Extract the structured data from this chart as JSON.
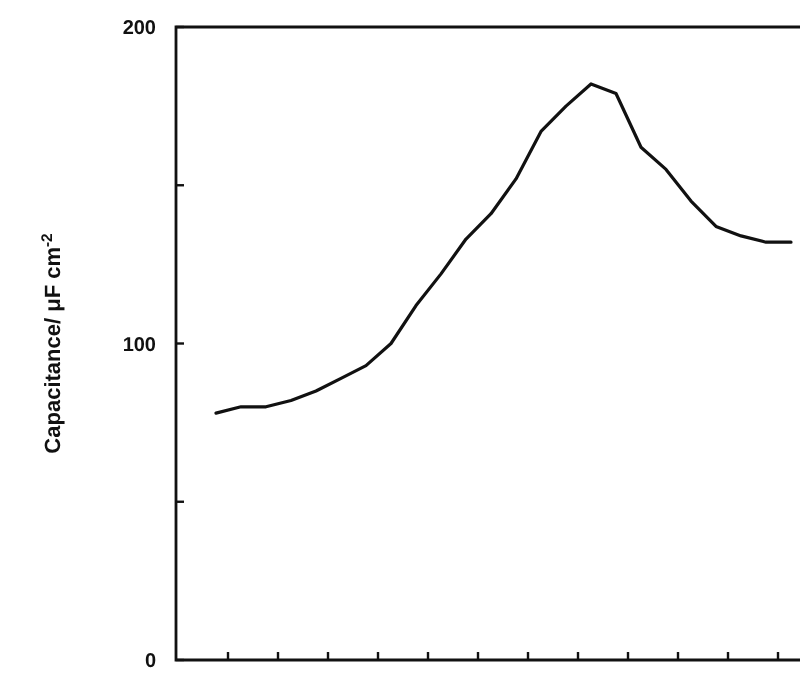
{
  "chart_data": {
    "type": "line",
    "ylabel": "Capacitance/ μF cm$^{-2}$",
    "categories": [
      null,
      null,
      null,
      null,
      null,
      null,
      null,
      null,
      null,
      null,
      null,
      null,
      null,
      null,
      null,
      null,
      null,
      null,
      null,
      null,
      null,
      null,
      null,
      null
    ],
    "series": [
      {
        "color": "#111111",
        "values": [
          78,
          80,
          80,
          82,
          85,
          89,
          93,
          100,
          112,
          122,
          133,
          141,
          152,
          167,
          175,
          182,
          179,
          162,
          155,
          145,
          137,
          134,
          132,
          132
        ]
      }
    ],
    "ylim": [
      0,
      200
    ],
    "yticks": [
      0,
      {
        "value": 50,
        "label": null
      },
      100,
      {
        "value": 150,
        "label": null
      },
      200
    ],
    "tick_labels": "y",
    "marker": "none",
    "line_style": "solid"
  }
}
